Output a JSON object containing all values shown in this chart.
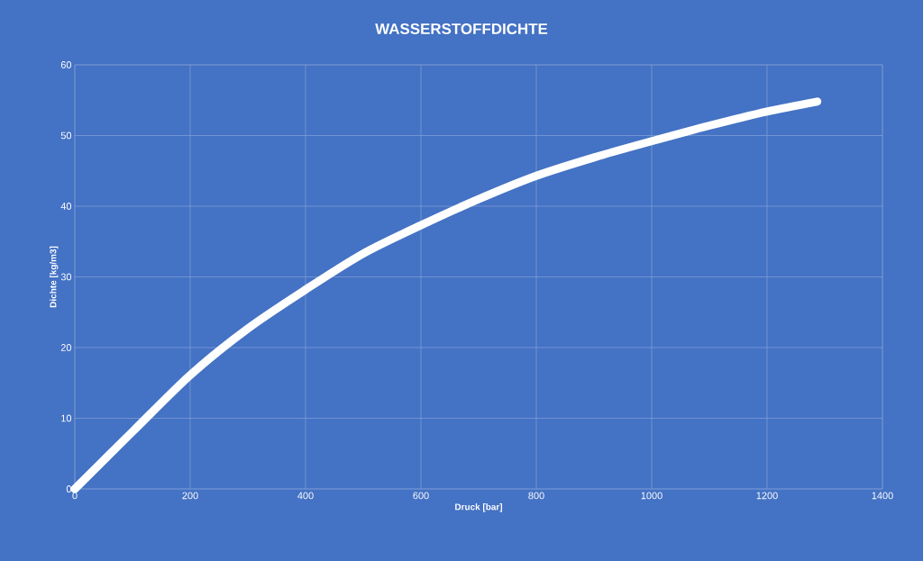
{
  "chart_data": {
    "type": "line",
    "title": "WASSERSTOFFDICHTE",
    "xlabel": "Druck [bar]",
    "ylabel": "Dichte [kg/m3]",
    "xlim": [
      0,
      1400
    ],
    "xticks": [
      0,
      200,
      400,
      600,
      800,
      1000,
      1200,
      1400
    ],
    "ylim": [
      0,
      60
    ],
    "yticks": [
      0,
      10,
      20,
      30,
      40,
      50,
      60
    ],
    "grid": true,
    "marker": "none",
    "line_style": "solid",
    "series": [
      {
        "color": "#ffffff",
        "x": [
          0,
          100,
          200,
          300,
          400,
          500,
          600,
          700,
          800,
          900,
          1000,
          1100,
          1200,
          1287
        ],
        "values": [
          0,
          8.1,
          16.1,
          22.7,
          28.2,
          33.3,
          37.3,
          41.0,
          44.3,
          46.9,
          49.2,
          51.4,
          53.4,
          54.8
        ]
      }
    ]
  }
}
